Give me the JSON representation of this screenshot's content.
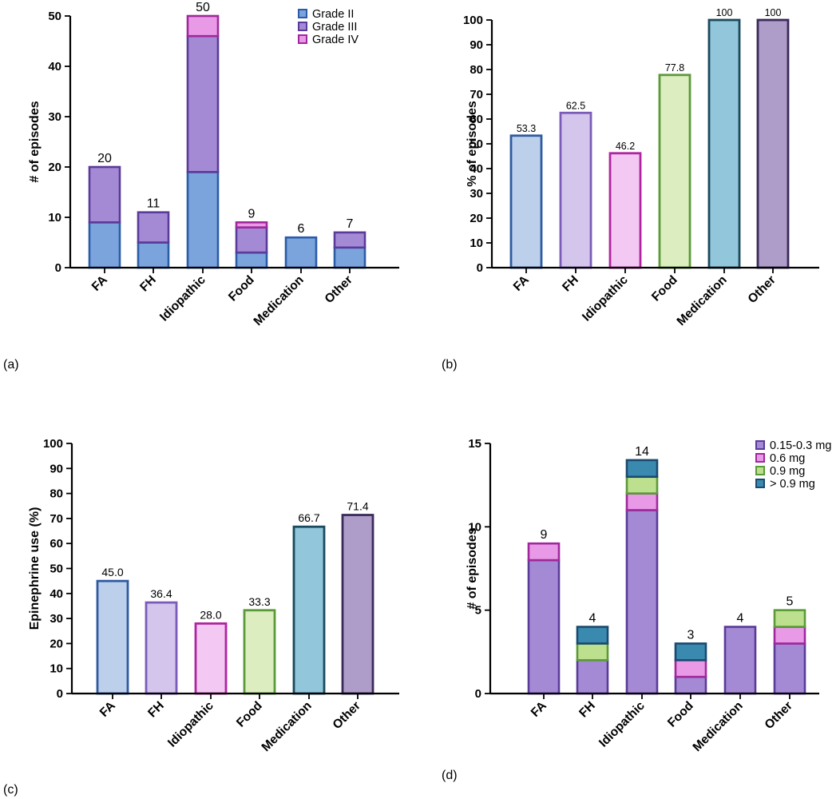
{
  "chart_data": [
    {
      "panel": "(a)",
      "type": "bar",
      "stacked": true,
      "categories": [
        "FA",
        "FH",
        "Idiopathic",
        "Food",
        "Medication",
        "Other"
      ],
      "series": [
        {
          "name": "Grade II",
          "values": [
            9,
            5,
            19,
            3,
            6,
            4
          ],
          "fill": "#7ba3dc",
          "stroke": "#2a5ca8"
        },
        {
          "name": "Grade III",
          "values": [
            11,
            6,
            27,
            5,
            0,
            3
          ],
          "fill": "#a48ad4",
          "stroke": "#5a3a9a"
        },
        {
          "name": "Grade IV",
          "values": [
            0,
            0,
            4,
            1,
            0,
            0
          ],
          "fill": "#e89ae6",
          "stroke": "#a0289c"
        }
      ],
      "totals": [
        "20",
        "11",
        "50",
        "9",
        "6",
        "7"
      ],
      "xlabel": "",
      "ylabel": "# of episodes",
      "ylim": [
        0,
        50
      ],
      "yticks": [
        0,
        10,
        20,
        30,
        40,
        50
      ],
      "legend": "top-right"
    },
    {
      "panel": "(b)",
      "type": "bar",
      "categories": [
        "FA",
        "FH",
        "Idiopathic",
        "Food",
        "Medication",
        "Other"
      ],
      "values": [
        53.3,
        62.5,
        46.2,
        77.8,
        100,
        100
      ],
      "value_labels": [
        "53.3",
        "62.5",
        "46.2",
        "77.8",
        "100",
        "100"
      ],
      "fills": [
        "#bcd0ec",
        "#d4c5ec",
        "#f3c8f3",
        "#dcedc0",
        "#92c6da",
        "#ae9dc8"
      ],
      "strokes": [
        "#2f5aa0",
        "#7a5cb8",
        "#b0259f",
        "#5a9a38",
        "#1a4a5e",
        "#3a2a5a"
      ],
      "xlabel": "",
      "ylabel": "% of episodes",
      "ylim": [
        0,
        100
      ],
      "yticks": [
        0,
        10,
        20,
        30,
        40,
        50,
        60,
        70,
        80,
        90,
        100
      ]
    },
    {
      "panel": "(c)",
      "type": "bar",
      "categories": [
        "FA",
        "FH",
        "Idiopathic",
        "Food",
        "Medication",
        "Other"
      ],
      "values": [
        45.0,
        36.4,
        28.0,
        33.3,
        66.7,
        71.4
      ],
      "value_labels": [
        "45.0",
        "36.4",
        "28.0",
        "33.3",
        "66.7",
        "71.4"
      ],
      "fills": [
        "#bcd0ec",
        "#d4c5ec",
        "#f3c8f3",
        "#dcedc0",
        "#92c6da",
        "#ae9dc8"
      ],
      "strokes": [
        "#2f5aa0",
        "#7a5cb8",
        "#b0259f",
        "#5a9a38",
        "#1a4a5e",
        "#3a2a5a"
      ],
      "xlabel": "",
      "ylabel": "Epinephrine use (%)",
      "ylim": [
        0,
        100
      ],
      "yticks": [
        0,
        10,
        20,
        30,
        40,
        50,
        60,
        70,
        80,
        90,
        100
      ]
    },
    {
      "panel": "(d)",
      "type": "bar",
      "stacked": true,
      "categories": [
        "FA",
        "FH",
        "Idiopathic",
        "Food",
        "Medication",
        "Other"
      ],
      "series": [
        {
          "name": "0.15-0.3 mg",
          "values": [
            8,
            2,
            11,
            1,
            4,
            3
          ],
          "fill": "#a48ad4",
          "stroke": "#5a3a9a"
        },
        {
          "name": "0.6 mg",
          "values": [
            1,
            0,
            1,
            1,
            0,
            1
          ],
          "fill": "#e89ae6",
          "stroke": "#a0289c"
        },
        {
          "name": "0.9 mg",
          "values": [
            0,
            1,
            1,
            0,
            0,
            1
          ],
          "fill": "#bde08e",
          "stroke": "#5a9a38"
        },
        {
          "name": "> 0.9 mg",
          "values": [
            0,
            1,
            1,
            1,
            0,
            0
          ],
          "fill": "#3a8ab0",
          "stroke": "#1a4a6e"
        }
      ],
      "totals": [
        "9",
        "4",
        "14",
        "3",
        "4",
        "5"
      ],
      "xlabel": "",
      "ylabel": "# of episodes",
      "ylim": [
        0,
        15
      ],
      "yticks": [
        0,
        5,
        10,
        15
      ],
      "legend": "top-right"
    }
  ]
}
